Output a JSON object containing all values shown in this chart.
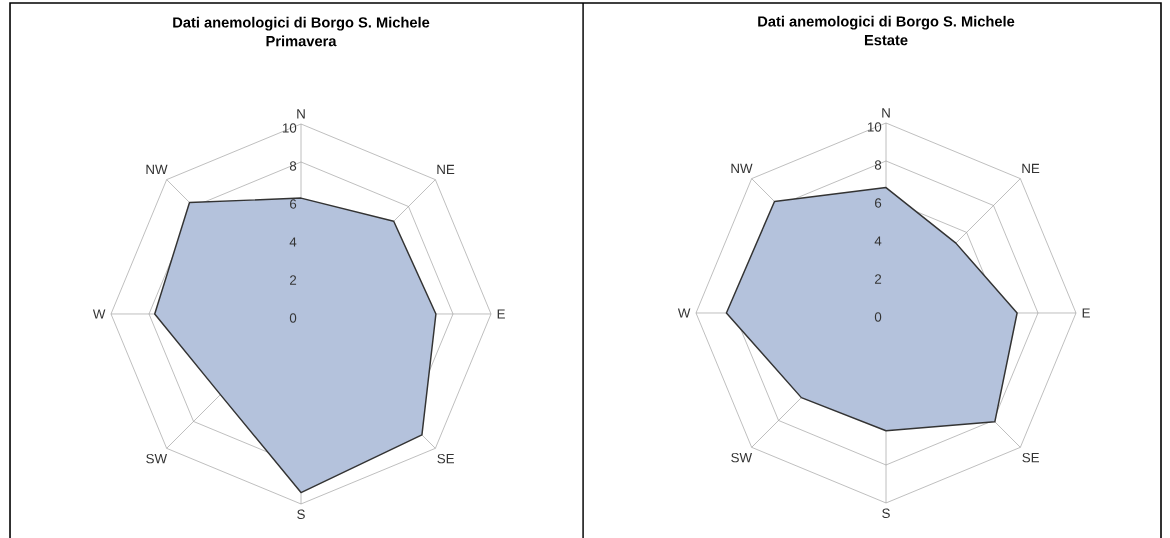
{
  "chart_data": [
    {
      "type": "radar",
      "title": "Dati anemologici di Borgo S. Michele",
      "subtitle": "Primavera",
      "categories": [
        "N",
        "NE",
        "E",
        "SE",
        "S",
        "SW",
        "W",
        "NW"
      ],
      "ylim": [
        0,
        10
      ],
      "yticks": [
        0,
        2,
        4,
        6,
        8,
        10
      ],
      "grid": true,
      "series": [
        {
          "color": "#b4c2dc",
          "values": [
            6.1,
            6.9,
            7.1,
            9.0,
            9.4,
            6.0,
            7.7,
            8.3
          ]
        }
      ]
    },
    {
      "type": "radar",
      "title": "Dati anemologici di Borgo S. Michele",
      "subtitle": "Estate",
      "categories": [
        "N",
        "NE",
        "E",
        "SE",
        "S",
        "SW",
        "W",
        "NW"
      ],
      "ylim": [
        0,
        10
      ],
      "yticks": [
        0,
        2,
        4,
        6,
        8,
        10
      ],
      "grid": true,
      "series": [
        {
          "color": "#b4c2dc",
          "values": [
            6.6,
            5.2,
            6.9,
            8.1,
            6.2,
            6.3,
            8.4,
            8.3
          ]
        }
      ]
    }
  ]
}
